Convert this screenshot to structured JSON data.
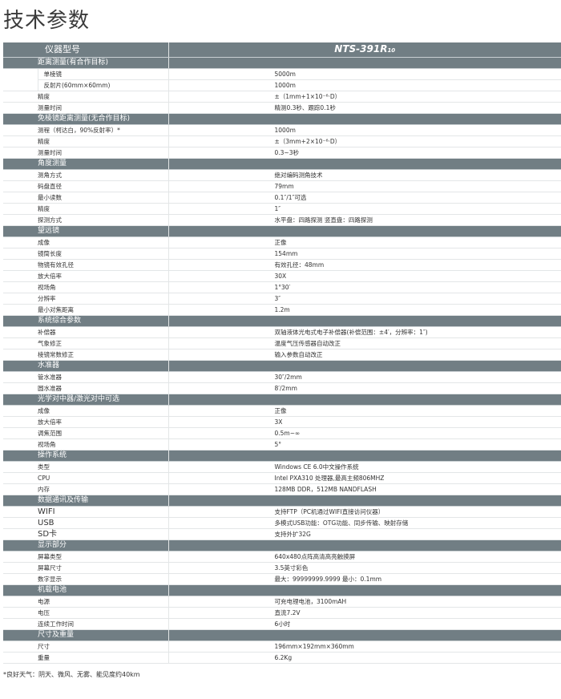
{
  "title": "技术参数",
  "header": {
    "label": "仪器型号",
    "model": "NTS-391R",
    "model_sub": "10"
  },
  "sections": [
    {
      "title": "距离测量(有合作目标)",
      "rows": [
        {
          "label": "测程*",
          "sub": "单棱镜",
          "value": "5000m"
        },
        {
          "sub": "反射片(60mm×60mm)",
          "value": "1000m"
        },
        {
          "label": "精度",
          "value": "±（1mm+1×10⁻⁶·D）"
        },
        {
          "label": "测量时间",
          "value": "精测0.3秒、跟踪0.1秒"
        }
      ]
    },
    {
      "title": "免棱镜距离测量(无合作目标)",
      "rows": [
        {
          "label": "测程（柯达白，90%反射率）*",
          "value": "1000m"
        },
        {
          "label": "精度",
          "value": "±（3mm+2×10⁻⁶·D）"
        },
        {
          "label": "测量时间",
          "value": "0.3~3秒"
        }
      ]
    },
    {
      "title": "角度测量",
      "rows": [
        {
          "label": "测角方式",
          "value": "绝对编码测角技术"
        },
        {
          "label": "码盘直径",
          "value": "79mm"
        },
        {
          "label": "最小读数",
          "value": "0.1″/1″可选"
        },
        {
          "label": "精度",
          "value": "1″"
        },
        {
          "label": "探测方式",
          "value": "水平盘：四路探测  竖直盘：四路探测"
        }
      ]
    },
    {
      "title": "望远镜",
      "rows": [
        {
          "label": "成像",
          "value": "正像"
        },
        {
          "label": "镜筒长度",
          "value": "154mm"
        },
        {
          "label": "物镜有效孔径",
          "value": "有效孔径：48mm"
        },
        {
          "label": "放大倍率",
          "value": "30X"
        },
        {
          "label": "视场角",
          "value": "1°30′"
        },
        {
          "label": "分辨率",
          "value": "3″"
        },
        {
          "label": "最小对焦距离",
          "value": "1.2m"
        }
      ]
    },
    {
      "title": "系统综合参数",
      "rows": [
        {
          "label": "补偿器",
          "value": "双轴液体光电式电子补偿器(补偿范围：±4′，分辨率：1″)"
        },
        {
          "label": "气象修正",
          "value": "温度气压传感器自动改正"
        },
        {
          "label": "棱镜常数修正",
          "value": "输入参数自动改正"
        }
      ]
    },
    {
      "title": "水准器",
      "rows": [
        {
          "label": "管水准器",
          "value": "30″/2mm"
        },
        {
          "label": "圆水准器",
          "value": "8′/2mm"
        }
      ]
    },
    {
      "title": "光学对中器/激光对中可选",
      "rows": [
        {
          "label": "成像",
          "value": "正像"
        },
        {
          "label": "放大倍率",
          "value": "3X"
        },
        {
          "label": "调焦范围",
          "value": "0.5m~∞"
        },
        {
          "label": "视场角",
          "value": "5°"
        }
      ]
    },
    {
      "title": "操作系统",
      "rows": [
        {
          "label": "类型",
          "value": "Windows CE 6.0中文操作系统"
        },
        {
          "label": "CPU",
          "value": "Intel PXA310 处理器,最高主频806MHZ"
        },
        {
          "label": "内存",
          "value": "128MB DDR，512MB NANDFLASH"
        }
      ]
    },
    {
      "title": "数据通讯及传输",
      "rows": [
        {
          "label": "WIFI",
          "value": "支持FTP（PC机通过WIFI直接访问仪器）"
        },
        {
          "label": "USB",
          "value": "多模式USB功能：OTG功能、同步传输、映射存储"
        },
        {
          "label": "SD卡",
          "value": "支持外扩32G"
        }
      ]
    },
    {
      "title": "显示部分",
      "rows": [
        {
          "label": "屏幕类型",
          "value": "640x480点阵高清高亮触摸屏"
        },
        {
          "label": "屏幕尺寸",
          "value": "3.5英寸彩色"
        },
        {
          "label": "数字显示",
          "value": "最大：99999999.9999  最小：0.1mm"
        }
      ]
    },
    {
      "title": "机载电池",
      "rows": [
        {
          "label": "电源",
          "value": "可充电锂电池，3100mAH"
        },
        {
          "label": "电压",
          "value": "直流7.2V"
        },
        {
          "label": "连续工作时间",
          "value": "6小时"
        }
      ]
    },
    {
      "title": "尺寸及重量",
      "rows": [
        {
          "label": "尺寸",
          "value": "196mm×192mm×360mm"
        },
        {
          "label": "重量",
          "value": "6.2Kg"
        }
      ]
    }
  ],
  "footnote": "*良好天气：阴天、微风、无雾、能见度约40km",
  "colors": {
    "section_bg": "#717e84",
    "divider": "#e3e6e7"
  }
}
